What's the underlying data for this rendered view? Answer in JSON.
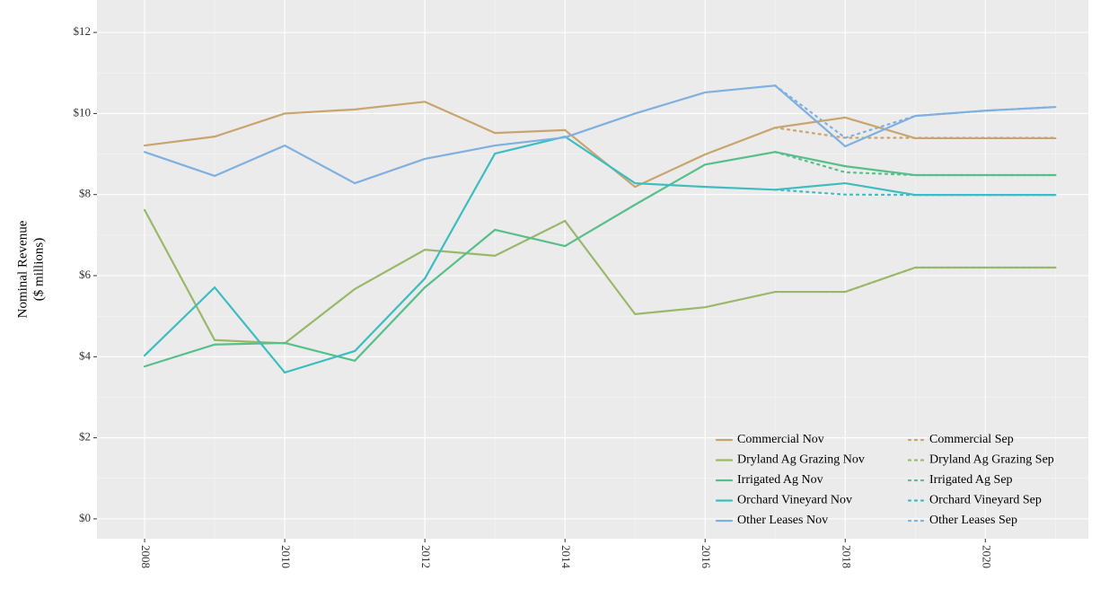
{
  "chart_data": {
    "type": "line",
    "y_label": [
      "Nominal Revenue",
      "($ millions)"
    ],
    "x": [
      2008,
      2009,
      2010,
      2011,
      2012,
      2013,
      2014,
      2015,
      2016,
      2017,
      2018,
      2019,
      2020,
      2021
    ],
    "xlim": [
      2007.32,
      2021.47
    ],
    "xticks": [
      2008,
      2010,
      2012,
      2014,
      2016,
      2018,
      2020
    ],
    "ylim": [
      -0.49,
      12.8
    ],
    "yticks": [
      {
        "value": 0,
        "label": "$0"
      },
      {
        "value": 2,
        "label": "$2"
      },
      {
        "value": 4,
        "label": "$4"
      },
      {
        "value": 6,
        "label": "$6"
      },
      {
        "value": 8,
        "label": "$8"
      },
      {
        "value": 10,
        "label": "$10"
      },
      {
        "value": 12,
        "label": "$12"
      }
    ],
    "grid": true,
    "legend": "bottom-right",
    "series": [
      {
        "name": "Commercial Nov",
        "color": "#c8a46e",
        "style": "solid",
        "values": [
          9.21,
          9.43,
          10.0,
          10.1,
          10.29,
          9.52,
          9.59,
          8.19,
          8.99,
          9.65,
          9.9,
          9.39,
          9.39,
          9.39
        ]
      },
      {
        "name": "Dryland Ag Grazing Nov",
        "color": "#9ab86a",
        "style": "solid",
        "values": [
          7.62,
          4.41,
          4.33,
          5.67,
          6.64,
          6.49,
          7.35,
          5.05,
          5.22,
          5.6,
          5.6,
          6.2,
          6.2,
          6.2
        ]
      },
      {
        "name": "Irrigated Ag Nov",
        "color": "#57bf8a",
        "style": "solid",
        "values": [
          3.76,
          4.3,
          4.34,
          3.9,
          5.71,
          7.13,
          6.73,
          7.75,
          8.74,
          9.05,
          8.7,
          8.48,
          8.48,
          8.48
        ]
      },
      {
        "name": "Orchard Vineyard Nov",
        "color": "#3dbdc0",
        "style": "solid",
        "values": [
          4.03,
          5.71,
          3.61,
          4.14,
          5.93,
          9.01,
          9.43,
          8.28,
          8.19,
          8.12,
          8.28,
          7.99,
          7.99,
          7.99
        ]
      },
      {
        "name": "Other Leases Nov",
        "color": "#7fb0e0",
        "style": "solid",
        "values": [
          9.05,
          8.46,
          9.21,
          8.28,
          8.88,
          9.21,
          9.41,
          10.0,
          10.52,
          10.69,
          9.19,
          9.94,
          10.07,
          10.16
        ]
      },
      {
        "name": "Commercial Sep",
        "color": "#c8a46e",
        "style": "dotted",
        "values": [
          null,
          null,
          null,
          null,
          null,
          null,
          null,
          null,
          null,
          9.65,
          9.4,
          9.4,
          9.4,
          9.4
        ]
      },
      {
        "name": "Dryland Ag Grazing Sep",
        "color": "#9ab86a",
        "style": "dotted",
        "values": [
          null,
          null,
          null,
          null,
          null,
          null,
          null,
          null,
          null,
          5.6,
          5.6,
          6.2,
          6.2,
          6.2
        ]
      },
      {
        "name": "Irrigated Ag Sep",
        "color": "#57bf8a",
        "style": "dotted",
        "values": [
          null,
          null,
          null,
          null,
          null,
          null,
          null,
          null,
          null,
          9.05,
          8.55,
          8.48,
          8.48,
          8.48
        ]
      },
      {
        "name": "Orchard Vineyard Sep",
        "color": "#3dbdc0",
        "style": "dotted",
        "values": [
          null,
          null,
          null,
          null,
          null,
          null,
          null,
          null,
          null,
          8.12,
          8.0,
          7.99,
          7.99,
          7.99
        ]
      },
      {
        "name": "Other Leases Sep",
        "color": "#7fb0e0",
        "style": "dotted",
        "values": [
          null,
          null,
          null,
          null,
          null,
          null,
          null,
          null,
          null,
          10.69,
          9.4,
          9.94,
          10.07,
          10.16
        ]
      }
    ]
  }
}
